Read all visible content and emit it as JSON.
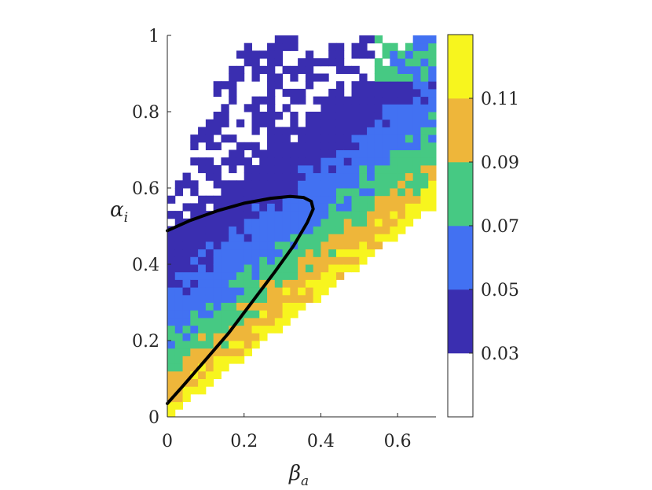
{
  "chart_data": {
    "type": "heatmap",
    "xlabel": "β",
    "xlabel_subscript": "a",
    "ylabel": "α",
    "ylabel_subscript": "i",
    "xlim": [
      0,
      0.7
    ],
    "ylim": [
      0,
      1
    ],
    "xticks": [
      0,
      0.2,
      0.4,
      0.6
    ],
    "xtick_labels": [
      "0",
      "0.2",
      "0.4",
      "0.6"
    ],
    "yticks": [
      0,
      0.2,
      0.4,
      0.6,
      0.8,
      1
    ],
    "ytick_labels": [
      "0",
      "0.2",
      "0.4",
      "0.6",
      "0.8",
      "1"
    ],
    "grid": false,
    "colorbar": {
      "bin_edges": [
        0.01,
        0.03,
        0.05,
        0.07,
        0.09,
        0.11,
        0.13
      ],
      "tick_values": [
        0.03,
        0.05,
        0.07,
        0.09,
        0.11
      ],
      "tick_labels": [
        "0.03",
        "0.05",
        "0.07",
        "0.09",
        "0.11"
      ],
      "colors": [
        "#ffffff",
        "#3a2eb0",
        "#4271f2",
        "#46c983",
        "#eeb63a",
        "#f7f51e"
      ]
    },
    "cell_size": {
      "beta": 0.02,
      "alpha": 0.02
    },
    "field": {
      "description_of_bands": "value bins by distance from lower boundary alpha = 0.8*beta",
      "lower_boundary_slope": 0.8,
      "upper_boundary": [
        [
          0,
          0.56
        ],
        [
          0.1,
          0.83
        ],
        [
          0.2,
          0.97
        ],
        [
          0.3,
          1.0
        ],
        [
          0.7,
          1.0
        ]
      ],
      "band_offsets": [
        0.04,
        0.11,
        0.2,
        0.33,
        0.5
      ]
    },
    "boundary_curve": {
      "color": "#000000",
      "points": [
        [
          0.0,
          0.035
        ],
        [
          0.04,
          0.08
        ],
        [
          0.1,
          0.15
        ],
        [
          0.16,
          0.22
        ],
        [
          0.22,
          0.3
        ],
        [
          0.28,
          0.38
        ],
        [
          0.33,
          0.45
        ],
        [
          0.365,
          0.51
        ],
        [
          0.38,
          0.545
        ],
        [
          0.375,
          0.565
        ],
        [
          0.355,
          0.575
        ],
        [
          0.32,
          0.578
        ],
        [
          0.27,
          0.573
        ],
        [
          0.2,
          0.56
        ],
        [
          0.13,
          0.54
        ],
        [
          0.06,
          0.515
        ],
        [
          0.0,
          0.488
        ]
      ]
    }
  }
}
